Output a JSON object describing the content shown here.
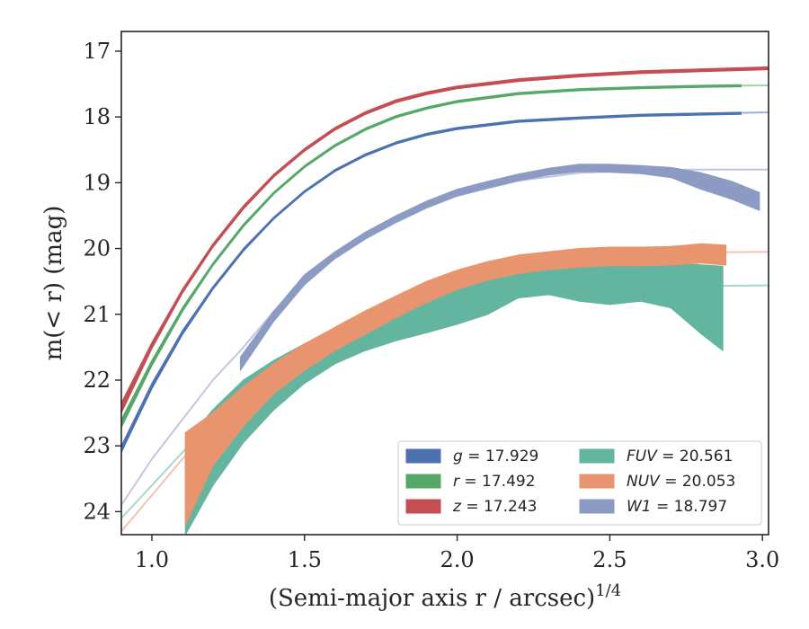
{
  "chart_data": {
    "type": "area",
    "xlabel": "(Semi-major axis r / arcsec)",
    "xlabel_power": "1/4",
    "ylabel": "m(< r) (mag)",
    "xlim": [
      0.9,
      3.02
    ],
    "ylim": [
      24.35,
      16.7
    ],
    "y_inverted": true,
    "x_ticks": [
      1.0,
      1.5,
      2.0,
      2.5,
      3.0
    ],
    "x_tick_labels": [
      "1.0",
      "1.5",
      "2.0",
      "2.5",
      "3.0"
    ],
    "y_ticks": [
      17,
      18,
      19,
      20,
      21,
      22,
      23,
      24
    ],
    "y_tick_labels": [
      "17",
      "18",
      "19",
      "20",
      "21",
      "22",
      "23",
      "24"
    ],
    "legend_position": "lower-right",
    "series": [
      {
        "name": "g",
        "legend_label": "g = 17.929",
        "asymptote": 17.929,
        "color": "#4c72b0",
        "band": [
          [
            0.9,
            23.0,
            23.1
          ],
          [
            1.0,
            22.05,
            22.13
          ],
          [
            1.1,
            21.25,
            21.31
          ],
          [
            1.2,
            20.58,
            20.62
          ],
          [
            1.3,
            20.0,
            20.04
          ],
          [
            1.4,
            19.52,
            19.55
          ],
          [
            1.5,
            19.12,
            19.15
          ],
          [
            1.6,
            18.8,
            18.83
          ],
          [
            1.7,
            18.56,
            18.59
          ],
          [
            1.8,
            18.38,
            18.41
          ],
          [
            1.9,
            18.25,
            18.28
          ],
          [
            2.0,
            18.16,
            18.19
          ],
          [
            2.2,
            18.05,
            18.08
          ],
          [
            2.4,
            18.0,
            18.03
          ],
          [
            2.6,
            17.96,
            17.99
          ],
          [
            2.8,
            17.94,
            17.97
          ],
          [
            2.93,
            17.93,
            17.96
          ]
        ],
        "model_x": [
          0.9,
          1.0,
          1.1,
          1.2,
          1.3,
          1.4,
          1.5,
          1.6,
          1.7,
          1.8,
          1.9,
          2.0,
          2.2,
          2.4,
          2.6,
          2.8,
          3.02
        ],
        "model_y": [
          23.05,
          22.09,
          21.28,
          20.6,
          20.02,
          19.54,
          19.14,
          18.82,
          18.58,
          18.4,
          18.27,
          18.18,
          18.07,
          18.02,
          17.97,
          17.95,
          17.93
        ]
      },
      {
        "name": "r",
        "legend_label": "r = 17.492",
        "asymptote": 17.492,
        "color": "#55a868",
        "band": [
          [
            0.9,
            22.6,
            22.72
          ],
          [
            1.0,
            21.7,
            21.78
          ],
          [
            1.1,
            20.9,
            20.96
          ],
          [
            1.2,
            20.22,
            20.26
          ],
          [
            1.3,
            19.63,
            19.67
          ],
          [
            1.4,
            19.14,
            19.17
          ],
          [
            1.5,
            18.74,
            18.77
          ],
          [
            1.6,
            18.42,
            18.45
          ],
          [
            1.7,
            18.17,
            18.2
          ],
          [
            1.8,
            17.98,
            18.01
          ],
          [
            1.9,
            17.85,
            17.88
          ],
          [
            2.0,
            17.75,
            17.78
          ],
          [
            2.2,
            17.63,
            17.66
          ],
          [
            2.4,
            17.57,
            17.6
          ],
          [
            2.6,
            17.54,
            17.57
          ],
          [
            2.8,
            17.52,
            17.55
          ],
          [
            2.93,
            17.51,
            17.54
          ]
        ],
        "model_x": [
          0.9,
          1.0,
          1.1,
          1.2,
          1.3,
          1.4,
          1.5,
          1.6,
          1.7,
          1.8,
          1.9,
          2.0,
          2.2,
          2.4,
          2.6,
          2.8,
          3.02
        ],
        "model_y": [
          22.66,
          21.74,
          20.93,
          20.24,
          19.65,
          19.15,
          18.75,
          18.43,
          18.18,
          18.0,
          17.86,
          17.77,
          17.65,
          17.58,
          17.55,
          17.53,
          17.52
        ]
      },
      {
        "name": "z",
        "legend_label": "z = 17.243",
        "asymptote": 17.243,
        "color": "#c44e52",
        "band": [
          [
            0.9,
            22.35,
            22.5
          ],
          [
            1.0,
            21.43,
            21.52
          ],
          [
            1.1,
            20.62,
            20.68
          ],
          [
            1.2,
            19.93,
            19.98
          ],
          [
            1.3,
            19.35,
            19.4
          ],
          [
            1.4,
            18.87,
            18.91
          ],
          [
            1.5,
            18.48,
            18.52
          ],
          [
            1.6,
            18.16,
            18.2
          ],
          [
            1.7,
            17.92,
            17.96
          ],
          [
            1.8,
            17.74,
            17.78
          ],
          [
            1.9,
            17.62,
            17.66
          ],
          [
            2.0,
            17.53,
            17.57
          ],
          [
            2.2,
            17.42,
            17.46
          ],
          [
            2.4,
            17.35,
            17.39
          ],
          [
            2.6,
            17.3,
            17.34
          ],
          [
            2.8,
            17.27,
            17.31
          ],
          [
            3.02,
            17.24,
            17.28
          ]
        ],
        "model_x": [
          0.9,
          1.0,
          1.1,
          1.2,
          1.3,
          1.4,
          1.5,
          1.6,
          1.7,
          1.8,
          1.9,
          2.0,
          2.2,
          2.4,
          2.6,
          2.8,
          3.02
        ],
        "model_y": [
          22.42,
          21.47,
          20.65,
          19.95,
          19.37,
          18.89,
          18.5,
          18.18,
          17.94,
          17.76,
          17.64,
          17.55,
          17.44,
          17.37,
          17.32,
          17.29,
          17.26
        ]
      },
      {
        "name": "FUV",
        "legend_label": "FUV = 20.561",
        "asymptote": 20.561,
        "color": "#64b5a0",
        "band": [
          [
            1.11,
            22.95,
            24.35
          ],
          [
            1.2,
            22.45,
            23.6
          ],
          [
            1.3,
            22.0,
            22.95
          ],
          [
            1.4,
            21.7,
            22.45
          ],
          [
            1.5,
            21.45,
            22.05
          ],
          [
            1.6,
            21.25,
            21.75
          ],
          [
            1.7,
            21.05,
            21.55
          ],
          [
            1.8,
            20.9,
            21.4
          ],
          [
            1.9,
            20.72,
            21.28
          ],
          [
            2.0,
            20.55,
            21.15
          ],
          [
            2.1,
            20.45,
            21.0
          ],
          [
            2.2,
            20.35,
            20.75
          ],
          [
            2.3,
            20.27,
            20.7
          ],
          [
            2.4,
            20.27,
            20.8
          ],
          [
            2.5,
            20.25,
            20.85
          ],
          [
            2.6,
            20.23,
            20.8
          ],
          [
            2.7,
            20.22,
            20.9
          ],
          [
            2.8,
            20.25,
            21.3
          ],
          [
            2.87,
            20.27,
            21.55
          ]
        ],
        "model_x": [
          0.9,
          1.0,
          1.1,
          1.2,
          1.3,
          1.4,
          1.5,
          1.6,
          1.7,
          1.8,
          1.9,
          2.0,
          2.2,
          2.4,
          2.6,
          2.8,
          3.02
        ],
        "model_y": [
          24.1,
          23.6,
          23.1,
          22.65,
          22.25,
          21.9,
          21.6,
          21.35,
          21.15,
          20.98,
          20.85,
          20.75,
          20.65,
          20.6,
          20.58,
          20.57,
          20.56
        ]
      },
      {
        "name": "NUV",
        "legend_label": "NUV = 20.053",
        "asymptote": 20.053,
        "color": "#e8956f",
        "band": [
          [
            1.11,
            22.8,
            24.2
          ],
          [
            1.2,
            22.5,
            23.3
          ],
          [
            1.3,
            22.1,
            22.7
          ],
          [
            1.4,
            21.75,
            22.2
          ],
          [
            1.5,
            21.45,
            21.85
          ],
          [
            1.6,
            21.2,
            21.55
          ],
          [
            1.7,
            20.95,
            21.3
          ],
          [
            1.8,
            20.72,
            21.05
          ],
          [
            1.9,
            20.5,
            20.82
          ],
          [
            2.0,
            20.33,
            20.62
          ],
          [
            2.1,
            20.2,
            20.48
          ],
          [
            2.2,
            20.1,
            20.38
          ],
          [
            2.3,
            20.05,
            20.32
          ],
          [
            2.4,
            20.0,
            20.28
          ],
          [
            2.5,
            19.98,
            20.26
          ],
          [
            2.6,
            19.98,
            20.26
          ],
          [
            2.7,
            19.97,
            20.25
          ],
          [
            2.8,
            19.93,
            20.22
          ],
          [
            2.88,
            19.95,
            20.25
          ]
        ],
        "model_x": [
          0.9,
          1.0,
          1.1,
          1.2,
          1.3,
          1.4,
          1.5,
          1.6,
          1.7,
          1.8,
          1.9,
          2.0,
          2.2,
          2.4,
          2.6,
          2.8,
          3.02
        ],
        "model_y": [
          24.3,
          23.75,
          23.2,
          22.7,
          22.25,
          21.85,
          21.5,
          21.2,
          20.95,
          20.73,
          20.55,
          20.4,
          20.22,
          20.12,
          20.08,
          20.06,
          20.05
        ]
      },
      {
        "name": "W1",
        "legend_label": "W1 = 18.797",
        "asymptote": 18.797,
        "color": "#8c9bc4",
        "band": [
          [
            1.29,
            21.65,
            21.85
          ],
          [
            1.4,
            20.95,
            21.1
          ],
          [
            1.5,
            20.4,
            20.55
          ],
          [
            1.6,
            20.05,
            20.15
          ],
          [
            1.7,
            19.75,
            19.85
          ],
          [
            1.8,
            19.5,
            19.6
          ],
          [
            1.9,
            19.28,
            19.38
          ],
          [
            2.0,
            19.1,
            19.2
          ],
          [
            2.1,
            18.98,
            19.08
          ],
          [
            2.2,
            18.87,
            18.97
          ],
          [
            2.3,
            18.78,
            18.88
          ],
          [
            2.4,
            18.72,
            18.83
          ],
          [
            2.5,
            18.72,
            18.84
          ],
          [
            2.6,
            18.74,
            18.86
          ],
          [
            2.7,
            18.77,
            18.92
          ],
          [
            2.8,
            18.85,
            19.1
          ],
          [
            2.9,
            18.98,
            19.25
          ],
          [
            2.99,
            19.15,
            19.42
          ]
        ],
        "model_x": [
          0.9,
          1.0,
          1.1,
          1.2,
          1.3,
          1.4,
          1.5,
          1.6,
          1.7,
          1.8,
          1.9,
          2.0,
          2.2,
          2.4,
          2.6,
          2.8,
          3.02
        ],
        "model_y": [
          23.9,
          23.2,
          22.6,
          22.0,
          21.5,
          20.95,
          20.5,
          20.15,
          19.85,
          19.6,
          19.38,
          19.2,
          18.97,
          18.85,
          18.81,
          18.8,
          18.8
        ]
      }
    ]
  }
}
